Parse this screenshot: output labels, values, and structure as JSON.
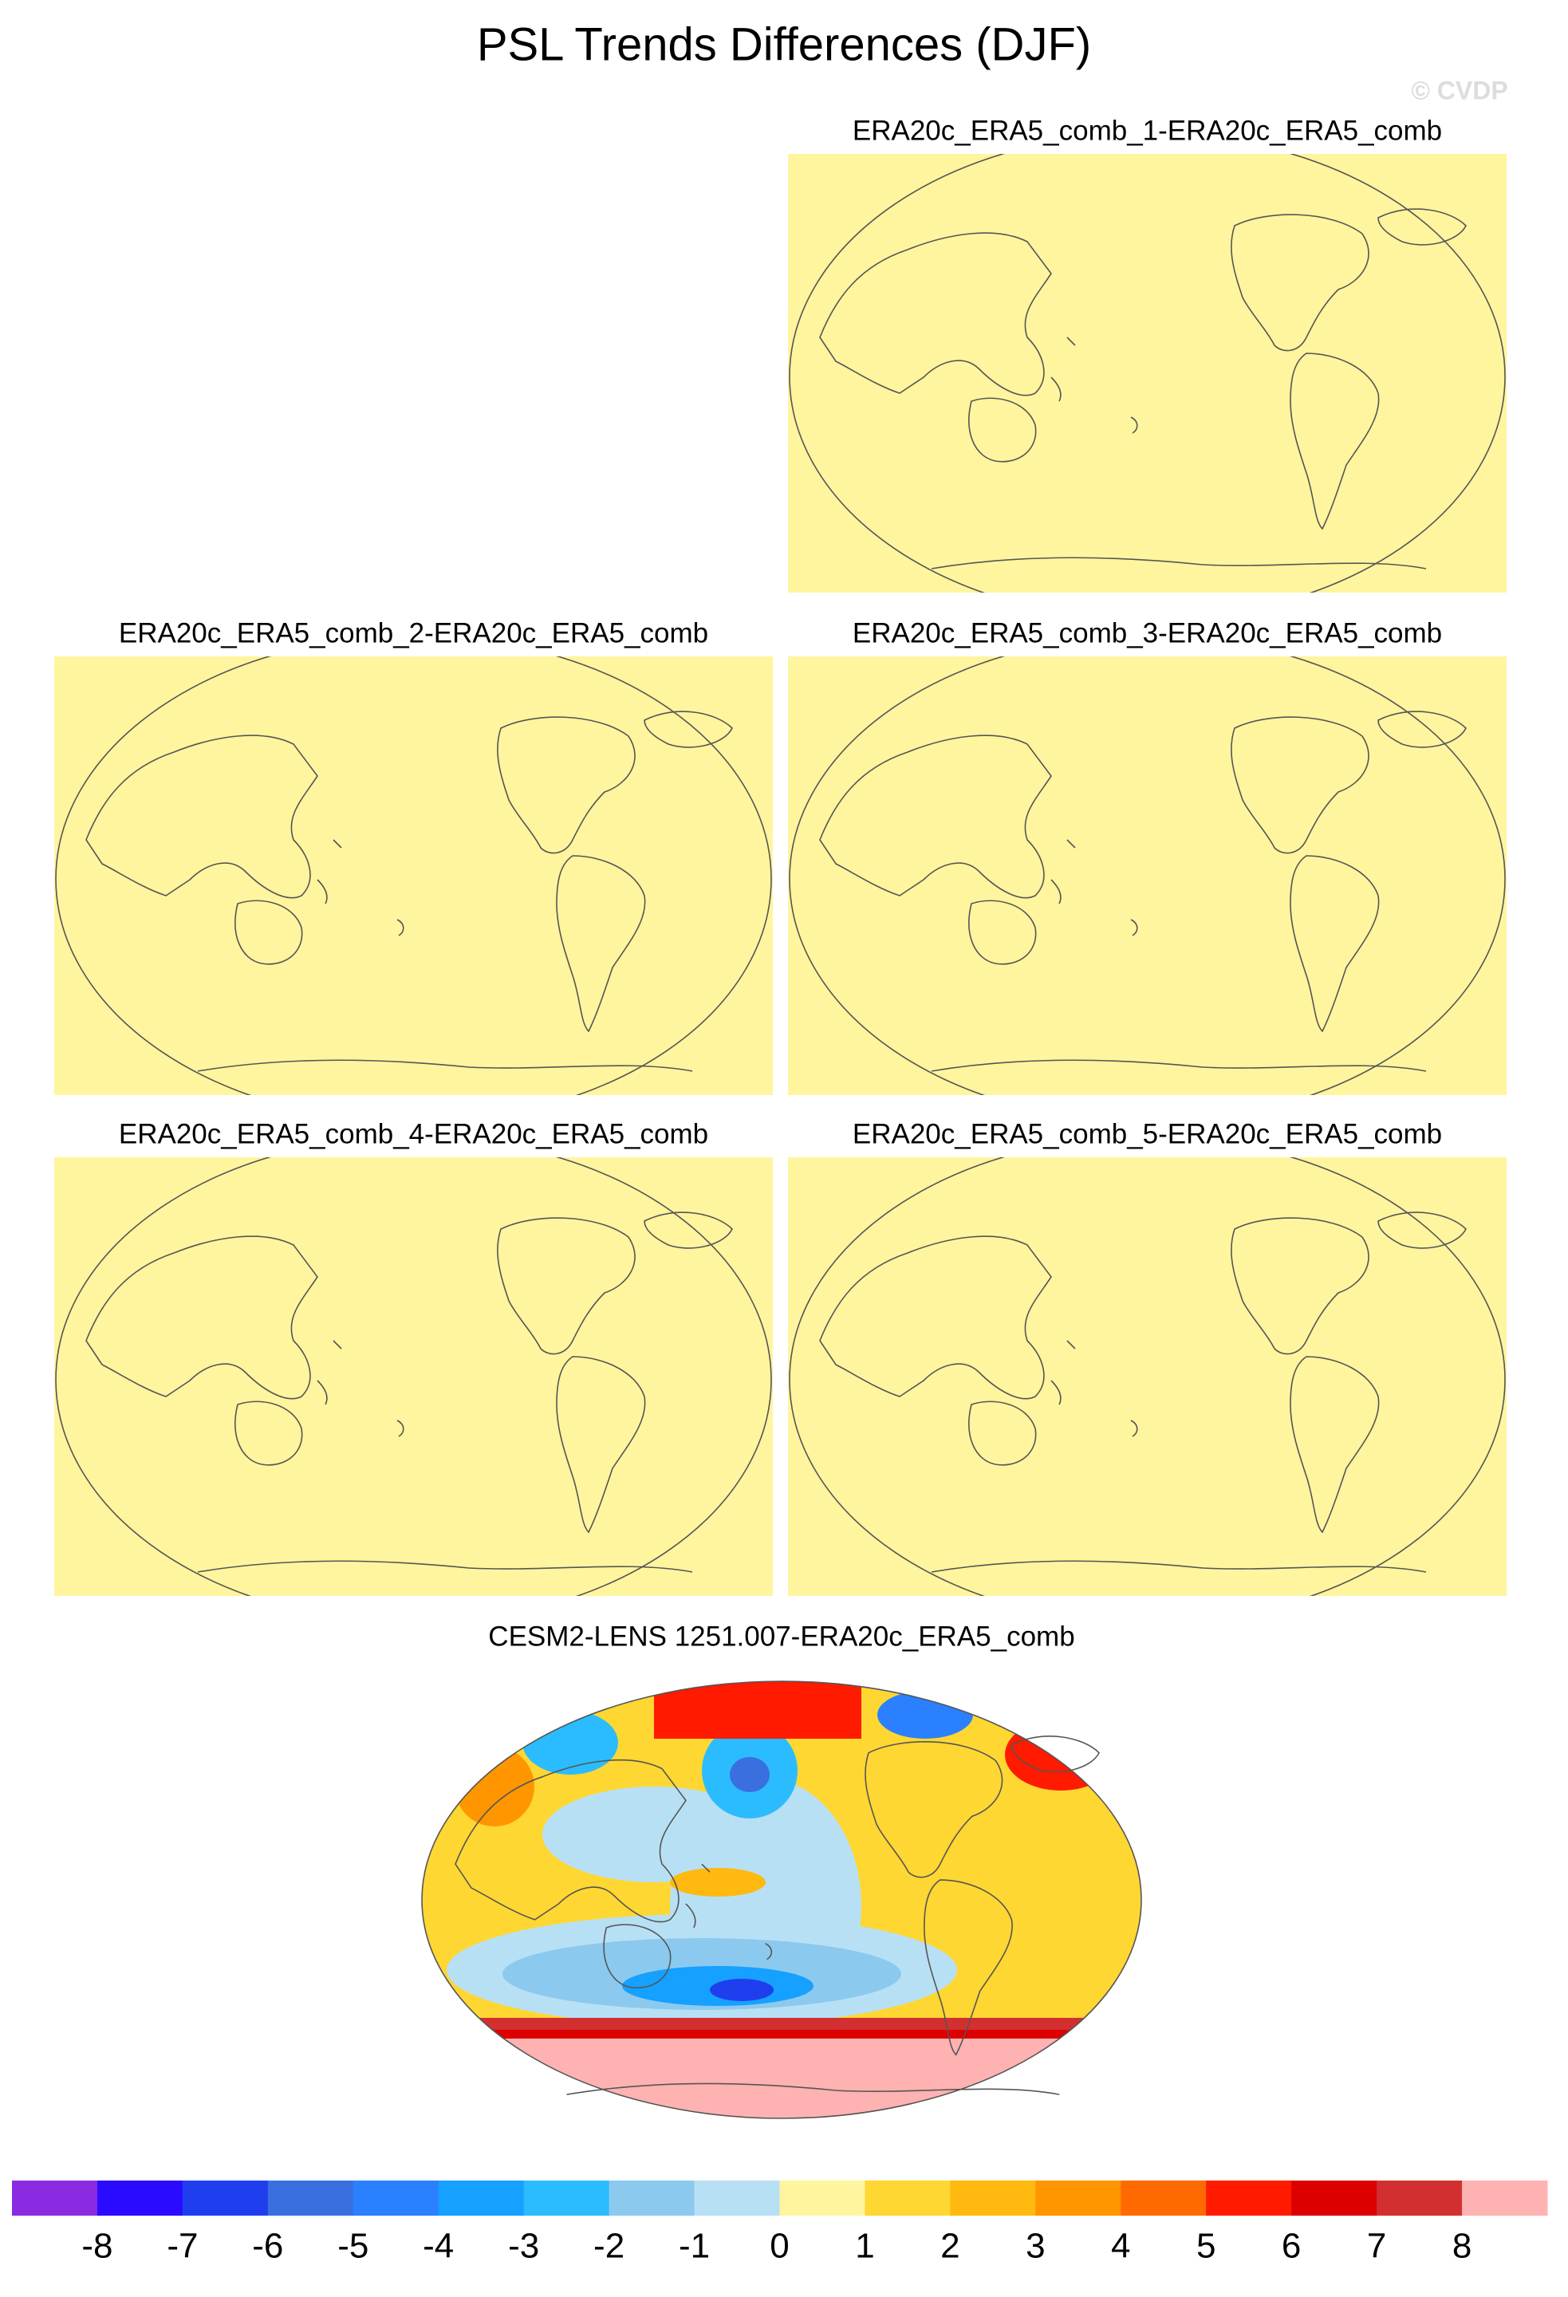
{
  "chart_data": {
    "type": "map",
    "title": "PSL Trends Differences (DJF)",
    "watermark": "© CVDP",
    "panels": [
      "ERA20c_ERA5_comb_1-ERA20c_ERA5_comb",
      "ERA20c_ERA5_comb_2-ERA20c_ERA5_comb",
      "ERA20c_ERA5_comb_3-ERA20c_ERA5_comb",
      "ERA20c_ERA5_comb_4-ERA20c_ERA5_comb",
      "ERA20c_ERA5_comb_5-ERA20c_ERA5_comb",
      "CESM2-LENS 1251.007-ERA20c_ERA5_comb"
    ],
    "colorbar": {
      "colors": [
        "#8a2be2",
        "#2b0bff",
        "#1f3fef",
        "#3a6fe0",
        "#2a80ff",
        "#16a0ff",
        "#2bbcff",
        "#8bcaee",
        "#b8e0f5",
        "#fff59e",
        "#ffd732",
        "#ffb90f",
        "#ff9600",
        "#ff6a00",
        "#ff1a00",
        "#dd0000",
        "#d23030",
        "#ffb2b2"
      ],
      "ticks": [
        -8,
        -7,
        -6,
        -5,
        -4,
        -3,
        -2,
        -1,
        0,
        1,
        2,
        3,
        4,
        5,
        6,
        7,
        8
      ]
    }
  }
}
